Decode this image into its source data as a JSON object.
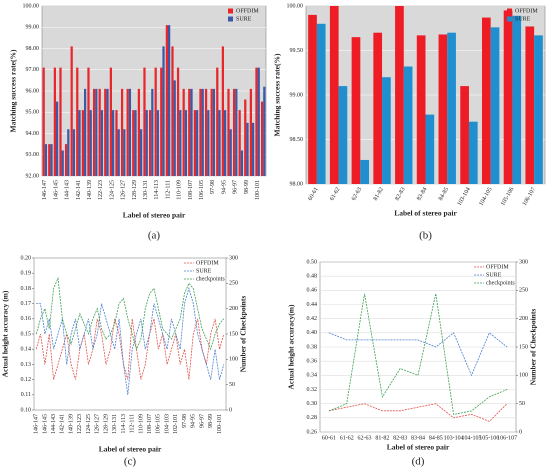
{
  "chart_data": [
    {
      "type": "bar",
      "label": "(a)",
      "xlabel": "Label of stereo pair",
      "ylabel": "Matching success rate(%)",
      "categories": [
        "146-147",
        null,
        "146-145",
        null,
        "144-143",
        null,
        "142-141",
        null,
        "140-139",
        null,
        "122-123",
        null,
        "124-125",
        null,
        "126-127",
        null,
        "128-129",
        null,
        "130-131",
        null,
        "114-113",
        null,
        "112-111",
        null,
        "110-109",
        null,
        "108-107",
        null,
        "106-105",
        null,
        "97-98",
        null,
        "94-95",
        null,
        "96-97",
        null,
        "98-99",
        null,
        "100-101",
        null
      ],
      "series": [
        {
          "name": "OFFDIM",
          "color": "#e8262b",
          "values": [
            97.1,
            93.5,
            97.1,
            97.1,
            93.5,
            98.1,
            97.1,
            95.1,
            97.1,
            96.1,
            96.1,
            96.1,
            97.1,
            95.1,
            96.1,
            96.1,
            95.1,
            96.1,
            97.1,
            95.1,
            97.1,
            97.1,
            99.1,
            98.1,
            97.1,
            96.1,
            96.1,
            95.1,
            96.1,
            96.1,
            96.1,
            97.1,
            98.1,
            96.1,
            96.1,
            95.1,
            95.6,
            96.1,
            97.1,
            95.5
          ]
        },
        {
          "name": "SURE",
          "color": "#3a5aa8",
          "values": [
            93.5,
            93.5,
            95.5,
            93.2,
            94.2,
            94.2,
            95.1,
            96.1,
            95.1,
            96.1,
            95.1,
            96.1,
            95.1,
            94.2,
            94.2,
            96.1,
            95.1,
            94.2,
            95.1,
            96.1,
            95.1,
            98.1,
            99.1,
            96.5,
            95.1,
            95.1,
            96.1,
            95.1,
            96.1,
            95.1,
            96.1,
            95.1,
            95.1,
            94.2,
            96.1,
            93.2,
            94.5,
            94.5,
            97.1,
            96.2
          ]
        }
      ],
      "ylim": [
        92,
        100
      ],
      "yticks": [
        {
          "value": 92,
          "label": "92.00"
        },
        {
          "value": 93,
          "label": "93.00"
        },
        {
          "value": 94,
          "label": "94.00"
        },
        {
          "value": 95,
          "label": "95.00"
        },
        {
          "value": 96,
          "label": "96.00"
        },
        {
          "value": 97,
          "label": "97.00"
        },
        {
          "value": 98,
          "label": "98.00"
        },
        {
          "value": 99,
          "label": "99.00"
        },
        {
          "value": 100,
          "label": "100.00"
        }
      ],
      "grid": true,
      "legend": "top-right"
    },
    {
      "type": "bar",
      "label": "(b)",
      "xlabel": "Label of stereo pair",
      "ylabel": "Matching success rate(%)",
      "categories": [
        "60-61",
        "61-62",
        "62-63",
        "81-82",
        "82-83",
        "83-84",
        "84-85",
        "103-104",
        "104-105",
        "105-106",
        "106-107"
      ],
      "series": [
        {
          "name": "OFFDIM",
          "color": "#ee1c24",
          "values": [
            99.9,
            100,
            99.65,
            99.7,
            100,
            99.67,
            99.68,
            99.1,
            99.87,
            99.95,
            99.77
          ]
        },
        {
          "name": "SURE",
          "color": "#1f8fcf",
          "values": [
            99.8,
            99.1,
            98.27,
            99.2,
            99.32,
            98.78,
            99.7,
            98.7,
            99.76,
            99.89,
            99.67
          ]
        }
      ],
      "ylim": [
        98,
        100
      ],
      "yticks": [
        {
          "value": 98,
          "label": "98.00"
        },
        {
          "value": 98.5,
          "label": "98.50"
        },
        {
          "value": 99,
          "label": "99.00"
        },
        {
          "value": 99.5,
          "label": "99.50"
        },
        {
          "value": 100,
          "label": "100.00"
        }
      ],
      "grid": true,
      "legend": "top-right"
    },
    {
      "type": "line",
      "label": "(c)",
      "xlabel": "Label of stereo pair",
      "ylabel": "Actual height accuracy (m)",
      "y2label": "Number of Checkpoints",
      "categories": [
        "146-147",
        null,
        "146-145",
        null,
        "144-143",
        null,
        "142-141",
        null,
        "140-139",
        null,
        "122-123",
        null,
        "124-125",
        null,
        "126-127",
        null,
        "128-129",
        null,
        "130-131",
        null,
        "114-113",
        null,
        "112-111",
        null,
        "110-109",
        null,
        "108-107",
        null,
        "106-105",
        null,
        "104-103",
        null,
        "102-101",
        null,
        "97-98",
        null,
        "94-95",
        null,
        "96-97",
        null,
        "98-99",
        null,
        "100-101",
        null
      ],
      "series": [
        {
          "name": "OFFDIM",
          "color": "#e0524a",
          "values": [
            0.14,
            0.15,
            0.13,
            0.15,
            0.12,
            0.13,
            0.14,
            0.15,
            0.13,
            0.12,
            0.14,
            0.15,
            0.13,
            0.14,
            0.16,
            0.15,
            0.13,
            0.14,
            0.16,
            0.15,
            0.13,
            0.12,
            0.16,
            0.14,
            0.12,
            0.13,
            0.15,
            0.16,
            0.14,
            0.15,
            0.13,
            0.14,
            0.15,
            0.13,
            0.14,
            0.12,
            0.15,
            0.16,
            0.14,
            0.13,
            0.15,
            0.16,
            0.14,
            0.15
          ]
        },
        {
          "name": "SURE",
          "color": "#4a7fd0",
          "values": [
            0.17,
            0.17,
            0.15,
            0.16,
            0.14,
            0.15,
            0.16,
            0.13,
            0.15,
            0.16,
            0.14,
            0.15,
            0.16,
            0.14,
            0.15,
            0.17,
            0.16,
            0.15,
            0.14,
            0.16,
            0.13,
            0.11,
            0.14,
            0.15,
            0.16,
            0.14,
            0.15,
            0.17,
            0.16,
            0.15,
            0.14,
            0.16,
            0.15,
            0.14,
            0.17,
            0.18,
            0.17,
            0.15,
            0.14,
            0.13,
            0.12,
            0.14,
            0.12,
            0.13
          ]
        },
        {
          "name": "checkpoints",
          "color": "#3aa050",
          "axis": "y2",
          "values": [
            150,
            180,
            200,
            160,
            240,
            260,
            180,
            150,
            130,
            160,
            190,
            170,
            150,
            180,
            200,
            160,
            140,
            150,
            170,
            210,
            220,
            180,
            150,
            120,
            140,
            200,
            230,
            240,
            200,
            160,
            150,
            140,
            160,
            180,
            230,
            250,
            240,
            200,
            160,
            140,
            120,
            150,
            170,
            180
          ]
        }
      ],
      "ylim": [
        0.1,
        0.2
      ],
      "yticks": [
        {
          "value": 0.1,
          "label": "0.10"
        },
        0.11,
        0.12,
        0.13,
        0.14,
        0.15,
        0.16,
        0.17,
        0.18,
        0.19,
        {
          "value": 0.2,
          "label": "0.20"
        }
      ],
      "y2lim": [
        0,
        300
      ],
      "y2ticks": [
        0,
        50,
        100,
        150,
        200,
        250,
        300
      ],
      "grid": false,
      "legend": "top-right"
    },
    {
      "type": "line",
      "label": "(d)",
      "xlabel": "Label of stereo pair",
      "ylabel": "Actual height accuracy(m)",
      "y2label": "Number of Checkpoints",
      "categories": [
        "60-61",
        "61-62",
        "62-63",
        "81-82",
        "82-83",
        "83-84",
        "84-85",
        "103-104",
        "104-105",
        "105-106",
        "106-107"
      ],
      "series": [
        {
          "name": "OFFDIM",
          "color": "#e0524a",
          "values": [
            0.29,
            0.295,
            0.3,
            0.29,
            0.29,
            0.295,
            0.3,
            0.28,
            0.285,
            0.275,
            0.3
          ]
        },
        {
          "name": "SURE",
          "color": "#4a7fd0",
          "values": [
            0.4,
            0.39,
            0.39,
            0.39,
            0.39,
            0.39,
            0.38,
            0.4,
            0.34,
            0.4,
            0.38
          ]
        },
        {
          "name": "checkpoints",
          "color": "#3aa050",
          "axis": "y2",
          "values": [
            37,
            50,
            244,
            62,
            112,
            100,
            244,
            31,
            37,
            62,
            75
          ]
        }
      ],
      "ylim": [
        0.26,
        0.5
      ],
      "yticks": [
        0.26,
        0.28,
        {
          "value": 0.3,
          "label": "0.30"
        },
        0.32,
        0.34,
        0.36,
        0.38,
        {
          "value": 0.4,
          "label": "0.40"
        },
        0.42,
        0.44,
        0.46,
        0.48,
        {
          "value": 0.5,
          "label": "0.50"
        }
      ],
      "y2lim": [
        0,
        300
      ],
      "y2ticks": [
        0,
        50,
        100,
        150,
        200,
        250,
        300
      ],
      "grid": true,
      "legend": "top-right"
    }
  ]
}
